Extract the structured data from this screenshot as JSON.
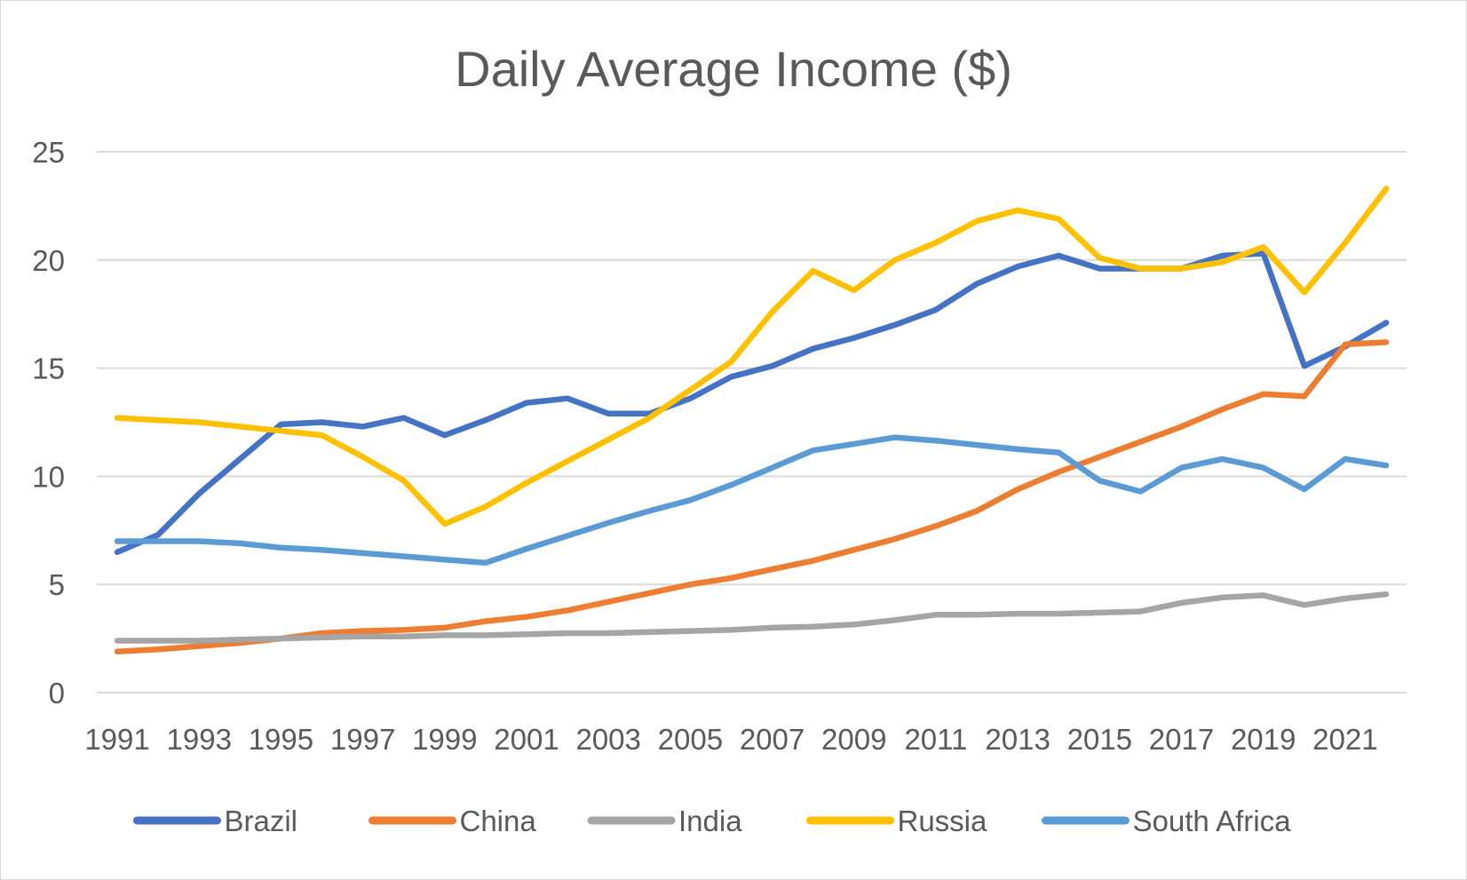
{
  "chart_data": {
    "type": "line",
    "title": "Daily Average Income ($)",
    "xlabel": "",
    "ylabel": "",
    "ylim": [
      0,
      25
    ],
    "yticks": [
      0,
      5,
      10,
      15,
      20,
      25
    ],
    "grid": "horizontal",
    "legend_position": "bottom",
    "x": [
      1991,
      1992,
      1993,
      1994,
      1995,
      1996,
      1997,
      1998,
      1999,
      2000,
      2001,
      2002,
      2003,
      2004,
      2005,
      2006,
      2007,
      2008,
      2009,
      2010,
      2011,
      2012,
      2013,
      2014,
      2015,
      2016,
      2017,
      2018,
      2019,
      2020,
      2021,
      2022
    ],
    "xtick_labels": [
      "1991",
      "1993",
      "1995",
      "1997",
      "1999",
      "2001",
      "2003",
      "2005",
      "2007",
      "2009",
      "2011",
      "2013",
      "2015",
      "2017",
      "2019",
      "2021"
    ],
    "series": [
      {
        "name": "Brazil",
        "color": "#4472C4",
        "values": [
          6.5,
          7.3,
          9.2,
          10.8,
          12.4,
          12.5,
          12.3,
          12.7,
          11.9,
          12.6,
          13.4,
          13.6,
          12.9,
          12.9,
          13.6,
          14.6,
          15.1,
          15.9,
          16.4,
          17.0,
          17.7,
          18.9,
          19.7,
          20.2,
          19.6,
          19.6,
          19.6,
          20.2,
          20.3,
          15.1,
          16.0,
          17.1
        ]
      },
      {
        "name": "China",
        "color": "#ED7D31",
        "values": [
          1.9,
          2.0,
          2.15,
          2.3,
          2.5,
          2.75,
          2.85,
          2.9,
          3.0,
          3.3,
          3.5,
          3.8,
          4.2,
          4.6,
          5.0,
          5.3,
          5.7,
          6.1,
          6.6,
          7.1,
          7.7,
          8.4,
          9.4,
          10.2,
          10.9,
          11.6,
          12.3,
          13.1,
          13.8,
          13.7,
          16.1,
          16.2
        ]
      },
      {
        "name": "India",
        "color": "#A5A5A5",
        "values": [
          2.4,
          2.4,
          2.4,
          2.45,
          2.5,
          2.55,
          2.6,
          2.6,
          2.65,
          2.65,
          2.7,
          2.75,
          2.75,
          2.8,
          2.85,
          2.9,
          3.0,
          3.05,
          3.15,
          3.35,
          3.6,
          3.6,
          3.65,
          3.65,
          3.7,
          3.75,
          4.15,
          4.4,
          4.5,
          4.05,
          4.35,
          4.55
        ]
      },
      {
        "name": "Russia",
        "color": "#FFC000",
        "values": [
          12.7,
          12.6,
          12.5,
          12.3,
          12.1,
          11.9,
          10.9,
          9.8,
          7.8,
          8.6,
          9.7,
          10.7,
          11.7,
          12.7,
          14.0,
          15.3,
          17.6,
          19.5,
          18.6,
          20.0,
          20.8,
          21.8,
          22.3,
          21.9,
          20.1,
          19.6,
          19.6,
          19.9,
          20.6,
          18.5,
          20.8,
          23.3
        ]
      },
      {
        "name": "South Africa",
        "color": "#5B9BD5",
        "values": [
          7.0,
          7.0,
          7.0,
          6.9,
          6.7,
          6.6,
          6.45,
          6.3,
          6.15,
          6.0,
          6.65,
          7.25,
          7.85,
          8.4,
          8.9,
          9.6,
          10.4,
          11.2,
          11.5,
          11.8,
          11.65,
          11.45,
          11.25,
          11.1,
          9.8,
          9.3,
          10.4,
          10.8,
          10.4,
          9.4,
          10.8,
          10.5
        ]
      }
    ]
  }
}
